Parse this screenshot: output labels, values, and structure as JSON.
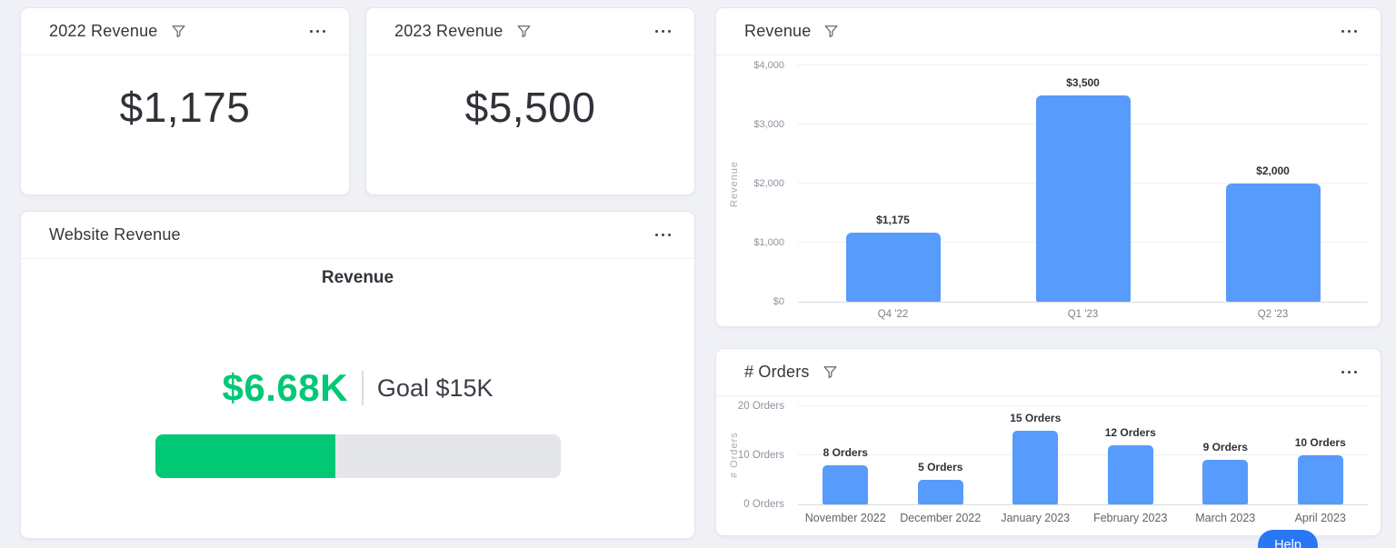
{
  "colors": {
    "page_bg": "#f0f1f6",
    "accent_green": "#00c875",
    "bar_blue": "#579bfc",
    "help_blue": "#2a77f6"
  },
  "icons": {
    "filter": "funnel-icon",
    "menu": "ellipsis-menu-icon"
  },
  "cards": {
    "revenue_2022": {
      "title": "2022 Revenue",
      "value": "$1,175"
    },
    "revenue_2023": {
      "title": "2023 Revenue",
      "value": "$5,500"
    },
    "website_revenue": {
      "title": "Website Revenue"
    },
    "revenue_chart": {
      "title": "Revenue"
    },
    "orders_chart": {
      "title": "# Orders"
    }
  },
  "help_button": {
    "label": "Help"
  },
  "chart_data": [
    {
      "type": "bar",
      "title": "Revenue",
      "categories": [
        "Q4 '22",
        "Q1 '23",
        "Q2 '23"
      ],
      "values": [
        1175,
        3500,
        2000
      ],
      "value_labels": [
        "$1,175",
        "$3,500",
        "$2,000"
      ],
      "xlabel": "",
      "ylabel": "Revenue",
      "yticks": [
        "$0",
        "$1,000",
        "$2,000",
        "$3,000",
        "$4,000"
      ],
      "ylim": [
        0,
        4000
      ],
      "grid": true,
      "legend": false,
      "bar_color": "#579bfc"
    },
    {
      "type": "bar",
      "title": "# Orders",
      "categories": [
        "November 2022",
        "December 2022",
        "January 2023",
        "February 2023",
        "March 2023",
        "April 2023"
      ],
      "values": [
        8,
        5,
        15,
        12,
        9,
        10
      ],
      "value_labels": [
        "8 Orders",
        "5 Orders",
        "15 Orders",
        "12 Orders",
        "9 Orders",
        "10 Orders"
      ],
      "xlabel": "",
      "ylabel": "# Orders",
      "yticks": [
        "0 Orders",
        "10 Orders",
        "20 Orders"
      ],
      "ylim": [
        0,
        20
      ],
      "grid": true,
      "legend": false,
      "bar_color": "#579bfc"
    },
    {
      "type": "progress",
      "title": "Revenue",
      "value": 6680,
      "goal": 15000,
      "value_label": "$6.68K",
      "goal_label": "Goal $15K",
      "percent": 44.5,
      "color": "#00c875"
    }
  ]
}
